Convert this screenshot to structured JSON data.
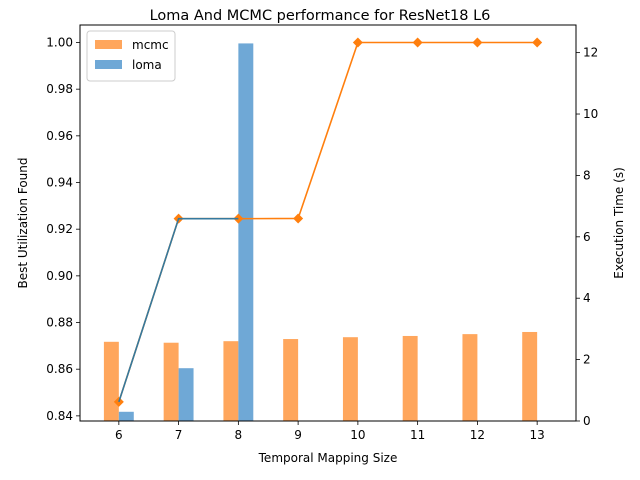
{
  "chart_data": {
    "type": "bar",
    "title": "Loma And MCMC performance for ResNet18 L6",
    "xlabel": "Temporal Mapping Size",
    "ylabel_left": "Best Utilization Found",
    "ylabel_right": "Execution Time (s)",
    "categories": [
      "6",
      "7",
      "8",
      "9",
      "10",
      "11",
      "12",
      "13"
    ],
    "ylim_left": [
      0.8378,
      1.0075
    ],
    "ylim_right": [
      0,
      12.9
    ],
    "yticks_left": [
      "0.84",
      "0.86",
      "0.88",
      "0.90",
      "0.92",
      "0.94",
      "0.96",
      "0.98",
      "1.00"
    ],
    "yticks_right": [
      "0",
      "2",
      "4",
      "6",
      "8",
      "10",
      "12"
    ],
    "legend_position": "top-left",
    "series": [
      {
        "name": "mcmc",
        "kind": "bar",
        "axis": "right",
        "color": "#ffa65c",
        "values": [
          2.58,
          2.55,
          2.6,
          2.67,
          2.73,
          2.77,
          2.83,
          2.9
        ]
      },
      {
        "name": "loma",
        "kind": "bar",
        "axis": "right",
        "color": "#6fa8d6",
        "values": [
          0.3,
          1.72,
          12.3,
          null,
          null,
          null,
          null,
          null
        ]
      },
      {
        "kind": "line",
        "axis": "left",
        "color": "#ff7f0e",
        "values": [
          0.846,
          0.9245,
          0.9245,
          0.9246,
          1.0,
          1.0,
          1.0,
          1.0
        ]
      },
      {
        "kind": "line",
        "axis": "left",
        "color": "#35799e",
        "values": [
          0.846,
          0.9245,
          0.9245,
          null,
          null,
          null,
          null,
          null
        ]
      }
    ]
  }
}
